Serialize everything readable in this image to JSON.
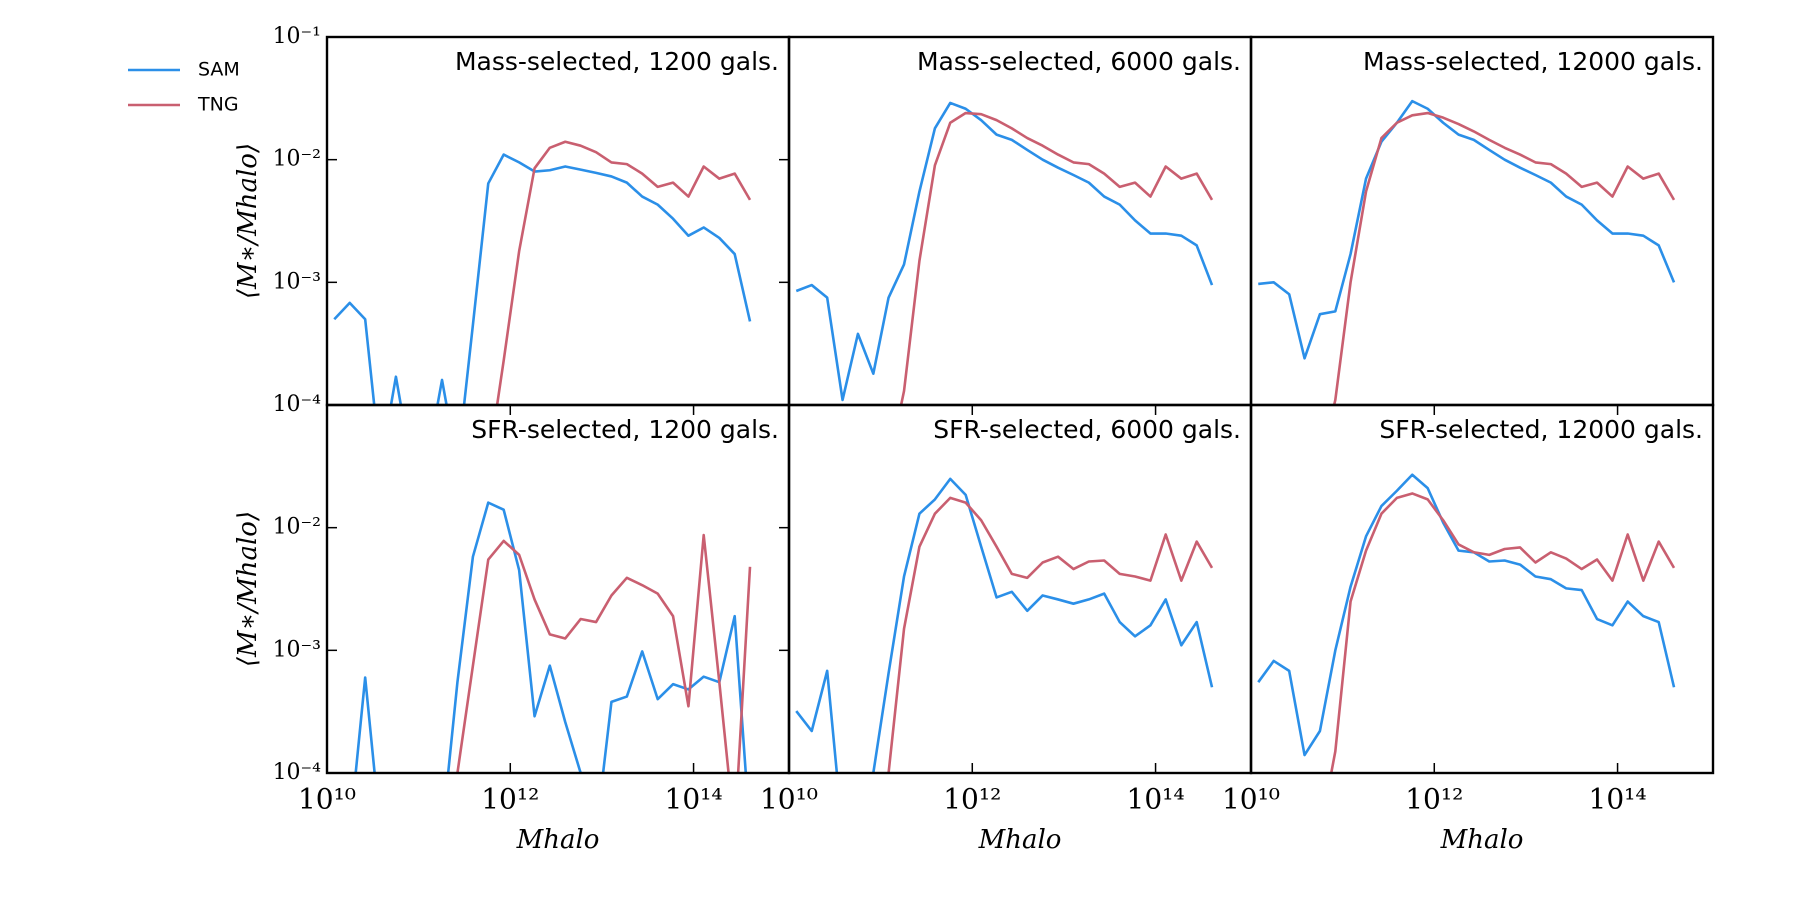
{
  "chart_data": [
    {
      "type": "line",
      "title": "Mass-selected, 1200 gals.",
      "xscale": "log",
      "yscale": "log",
      "x": [
        12000000000.0,
        17700000000.0,
        26100000000.0,
        38400000000.0,
        56500000000.0,
        83200000000.0,
        122000000000.0,
        180000000000.0,
        265000000000.0,
        391000000000.0,
        575000000000.0,
        847000000000.0,
        1250000000000.0,
        1840000000000.0,
        2700000000000.0,
        3980000000000.0,
        5860000000000.0,
        8630000000000.0,
        12700000000000.0,
        18700000000000.0,
        27500000000000.0,
        40600000000000.0,
        59700000000000.0,
        87900000000000.0,
        129000000000000.0,
        191000000000000.0,
        281000000000000.0,
        413000000000000.0
      ],
      "xlim": [
        10000000000.0,
        1100000000000000.0
      ],
      "ylim": [
        0.0001,
        0.1
      ],
      "yticks": [
        {
          "value": 0.1,
          "label": "10⁻¹"
        },
        {
          "value": 0.01,
          "label": "10⁻²"
        },
        {
          "value": 0.001,
          "label": "10⁻³"
        },
        {
          "value": 0.0001,
          "label": "10⁻⁴"
        }
      ],
      "ylabel": "⟨M∗/Mhalo⟩",
      "legend": "upper left outside",
      "series": [
        {
          "name": "SAM",
          "color": "#2b8fe8",
          "values": [
            0.0005,
            0.00068,
            0.0005,
            0,
            0.00017,
            0,
            0,
            0.00016,
            0,
            0.00045,
            0.0064,
            0.011,
            0.0095,
            0.008,
            0.0082,
            0.0088,
            0.0083,
            0.0078,
            0.0073,
            0.0065,
            0.005,
            0.0043,
            0.0033,
            0.0024,
            0.0028,
            0.0023,
            0.0017,
            0.00048
          ]
        },
        {
          "name": "TNG",
          "color": "#c95f70",
          "values": [
            0,
            0,
            0,
            0,
            0,
            0,
            0,
            0,
            0,
            0,
            0,
            0.00023,
            0.0018,
            0.0085,
            0.0125,
            0.014,
            0.013,
            0.0115,
            0.0095,
            0.0092,
            0.0077,
            0.006,
            0.0065,
            0.005,
            0.0088,
            0.007,
            0.0077,
            0.0047
          ]
        }
      ]
    },
    {
      "type": "line",
      "title": "Mass-selected, 6000 gals.",
      "xscale": "log",
      "yscale": "log",
      "x": [
        12000000000.0,
        17700000000.0,
        26100000000.0,
        38400000000.0,
        56500000000.0,
        83200000000.0,
        122000000000.0,
        180000000000.0,
        265000000000.0,
        391000000000.0,
        575000000000.0,
        847000000000.0,
        1250000000000.0,
        1840000000000.0,
        2700000000000.0,
        3980000000000.0,
        5860000000000.0,
        8630000000000.0,
        12700000000000.0,
        18700000000000.0,
        27500000000000.0,
        40600000000000.0,
        59700000000000.0,
        87900000000000.0,
        129000000000000.0,
        191000000000000.0,
        281000000000000.0,
        413000000000000.0
      ],
      "xlim": [
        10000000000.0,
        1100000000000000.0
      ],
      "ylim": [
        0.0001,
        0.1
      ],
      "series": [
        {
          "name": "SAM",
          "color": "#2b8fe8",
          "values": [
            0.00085,
            0.00095,
            0.00075,
            0.00011,
            0.00038,
            0.00018,
            0.00075,
            0.0014,
            0.0055,
            0.018,
            0.029,
            0.026,
            0.021,
            0.016,
            0.0145,
            0.012,
            0.01,
            0.0086,
            0.0075,
            0.0065,
            0.005,
            0.0043,
            0.0032,
            0.0025,
            0.0025,
            0.0024,
            0.002,
            0.00095
          ]
        },
        {
          "name": "TNG",
          "color": "#c95f70",
          "values": [
            0,
            0,
            0,
            0,
            0,
            0,
            0,
            0.00013,
            0.0015,
            0.009,
            0.02,
            0.024,
            0.0235,
            0.021,
            0.018,
            0.015,
            0.013,
            0.011,
            0.0095,
            0.0092,
            0.0077,
            0.006,
            0.0065,
            0.005,
            0.0088,
            0.007,
            0.0077,
            0.0047
          ]
        }
      ]
    },
    {
      "type": "line",
      "title": "Mass-selected, 12000 gals.",
      "xscale": "log",
      "yscale": "log",
      "x": [
        12000000000.0,
        17700000000.0,
        26100000000.0,
        38400000000.0,
        56500000000.0,
        83200000000.0,
        122000000000.0,
        180000000000.0,
        265000000000.0,
        391000000000.0,
        575000000000.0,
        847000000000.0,
        1250000000000.0,
        1840000000000.0,
        2700000000000.0,
        3980000000000.0,
        5860000000000.0,
        8630000000000.0,
        12700000000000.0,
        18700000000000.0,
        27500000000000.0,
        40600000000000.0,
        59700000000000.0,
        87900000000000.0,
        129000000000000.0,
        191000000000000.0,
        281000000000000.0,
        413000000000000.0
      ],
      "xlim": [
        10000000000.0,
        1100000000000000.0
      ],
      "ylim": [
        0.0001,
        0.1
      ],
      "series": [
        {
          "name": "SAM",
          "color": "#2b8fe8",
          "values": [
            0.00097,
            0.001,
            0.0008,
            0.00024,
            0.00055,
            0.00058,
            0.0017,
            0.007,
            0.014,
            0.02,
            0.03,
            0.026,
            0.02,
            0.016,
            0.0145,
            0.012,
            0.01,
            0.0086,
            0.0075,
            0.0065,
            0.005,
            0.0043,
            0.0032,
            0.0025,
            0.0025,
            0.0024,
            0.002,
            0.001
          ]
        },
        {
          "name": "TNG",
          "color": "#c95f70",
          "values": [
            0,
            0,
            0,
            0,
            0,
            0.00011,
            0.001,
            0.0055,
            0.015,
            0.02,
            0.023,
            0.024,
            0.022,
            0.0195,
            0.017,
            0.0145,
            0.0125,
            0.011,
            0.0095,
            0.0092,
            0.0077,
            0.006,
            0.0065,
            0.005,
            0.0088,
            0.007,
            0.0077,
            0.0047
          ]
        }
      ]
    },
    {
      "type": "line",
      "title": "SFR-selected, 1200 gals.",
      "xscale": "log",
      "yscale": "log",
      "x": [
        12000000000.0,
        17700000000.0,
        26100000000.0,
        38400000000.0,
        56500000000.0,
        83200000000.0,
        122000000000.0,
        180000000000.0,
        265000000000.0,
        391000000000.0,
        575000000000.0,
        847000000000.0,
        1250000000000.0,
        1840000000000.0,
        2700000000000.0,
        3980000000000.0,
        5860000000000.0,
        8630000000000.0,
        12700000000000.0,
        18700000000000.0,
        27500000000000.0,
        40600000000000.0,
        59700000000000.0,
        87900000000000.0,
        129000000000000.0,
        191000000000000.0,
        281000000000000.0,
        413000000000000.0
      ],
      "xlim": [
        10000000000.0,
        1100000000000000.0
      ],
      "ylim": [
        0.0001,
        0.1
      ],
      "xticks": [
        {
          "value": 10000000000.0,
          "label": "10¹⁰"
        },
        {
          "value": 1000000000000.0,
          "label": "10¹²"
        },
        {
          "value": 100000000000000.0,
          "label": "10¹⁴"
        }
      ],
      "yticks": [
        {
          "value": 0.01,
          "label": "10⁻²"
        },
        {
          "value": 0.001,
          "label": "10⁻³"
        },
        {
          "value": 0.0001,
          "label": "10⁻⁴"
        }
      ],
      "xlabel": "Mhalo",
      "ylabel": "⟨M∗/Mhalo⟩",
      "series": [
        {
          "name": "SAM",
          "color": "#2b8fe8",
          "values": [
            0,
            0,
            0.0006,
            0,
            0,
            0,
            0,
            0,
            0.00055,
            0.0058,
            0.016,
            0.014,
            0.0045,
            0.00029,
            0.00075,
            0.00026,
            0.0001,
            0,
            0.00038,
            0.00042,
            0.00098,
            0.0004,
            0.00053,
            0.00048,
            0.00061,
            0.00055,
            0.0019,
            0
          ]
        },
        {
          "name": "TNG",
          "color": "#c95f70",
          "values": [
            0,
            0,
            0,
            0,
            0,
            0,
            0,
            0,
            0.0001,
            0.00075,
            0.0055,
            0.0078,
            0.006,
            0.0026,
            0.00135,
            0.00125,
            0.0018,
            0.0017,
            0.0028,
            0.0039,
            0.0034,
            0.0029,
            0.0019,
            0.00035,
            0.0087,
            0.00055,
            0,
            0.0048
          ]
        }
      ]
    },
    {
      "type": "line",
      "title": "SFR-selected, 6000 gals.",
      "xscale": "log",
      "yscale": "log",
      "x": [
        12000000000.0,
        17700000000.0,
        26100000000.0,
        38400000000.0,
        56500000000.0,
        83200000000.0,
        122000000000.0,
        180000000000.0,
        265000000000.0,
        391000000000.0,
        575000000000.0,
        847000000000.0,
        1250000000000.0,
        1840000000000.0,
        2700000000000.0,
        3980000000000.0,
        5860000000000.0,
        8630000000000.0,
        12700000000000.0,
        18700000000000.0,
        27500000000000.0,
        40600000000000.0,
        59700000000000.0,
        87900000000000.0,
        129000000000000.0,
        191000000000000.0,
        281000000000000.0,
        413000000000000.0
      ],
      "xlim": [
        10000000000.0,
        1100000000000000.0
      ],
      "ylim": [
        0.0001,
        0.1
      ],
      "xticks": [
        {
          "value": 10000000000.0,
          "label": "10¹⁰"
        },
        {
          "value": 1000000000000.0,
          "label": "10¹²"
        },
        {
          "value": 100000000000000.0,
          "label": "10¹⁴"
        }
      ],
      "xlabel": "Mhalo",
      "series": [
        {
          "name": "SAM",
          "color": "#2b8fe8",
          "values": [
            0.00032,
            0.00022,
            0.00068,
            0,
            0,
            0.0001,
            0.00065,
            0.004,
            0.013,
            0.017,
            0.025,
            0.0185,
            0.007,
            0.0027,
            0.003,
            0.0021,
            0.0028,
            0.0026,
            0.0024,
            0.0026,
            0.0029,
            0.0017,
            0.0013,
            0.0016,
            0.0026,
            0.0011,
            0.0017,
            0.0005
          ]
        },
        {
          "name": "TNG",
          "color": "#c95f70",
          "values": [
            0,
            0,
            0,
            0,
            0,
            0,
            0.0001,
            0.0015,
            0.007,
            0.013,
            0.0175,
            0.016,
            0.0115,
            0.007,
            0.0042,
            0.0039,
            0.0052,
            0.0058,
            0.0046,
            0.0053,
            0.0054,
            0.0042,
            0.004,
            0.0037,
            0.0088,
            0.0037,
            0.0077,
            0.0047
          ]
        }
      ]
    },
    {
      "type": "line",
      "title": "SFR-selected, 12000 gals.",
      "xscale": "log",
      "yscale": "log",
      "x": [
        12000000000.0,
        17700000000.0,
        26100000000.0,
        38400000000.0,
        56500000000.0,
        83200000000.0,
        122000000000.0,
        180000000000.0,
        265000000000.0,
        391000000000.0,
        575000000000.0,
        847000000000.0,
        1250000000000.0,
        1840000000000.0,
        2700000000000.0,
        3980000000000.0,
        5860000000000.0,
        8630000000000.0,
        12700000000000.0,
        18700000000000.0,
        27500000000000.0,
        40600000000000.0,
        59700000000000.0,
        87900000000000.0,
        129000000000000.0,
        191000000000000.0,
        281000000000000.0,
        413000000000000.0
      ],
      "xlim": [
        10000000000.0,
        1100000000000000.0
      ],
      "ylim": [
        0.0001,
        0.1
      ],
      "xticks": [
        {
          "value": 10000000000.0,
          "label": "10¹⁰"
        },
        {
          "value": 1000000000000.0,
          "label": "10¹²"
        },
        {
          "value": 100000000000000.0,
          "label": "10¹⁴"
        }
      ],
      "xlabel": "Mhalo",
      "series": [
        {
          "name": "SAM",
          "color": "#2b8fe8",
          "values": [
            0.00055,
            0.00082,
            0.00068,
            0.00014,
            0.00022,
            0.001,
            0.0033,
            0.0085,
            0.015,
            0.02,
            0.027,
            0.021,
            0.011,
            0.0065,
            0.0063,
            0.0053,
            0.0054,
            0.005,
            0.004,
            0.0038,
            0.0032,
            0.0031,
            0.0018,
            0.0016,
            0.0025,
            0.0019,
            0.0017,
            0.0005
          ]
        },
        {
          "name": "TNG",
          "color": "#c95f70",
          "values": [
            0,
            0,
            0,
            0,
            0,
            0.00015,
            0.0025,
            0.0065,
            0.013,
            0.0175,
            0.019,
            0.017,
            0.0115,
            0.0073,
            0.0063,
            0.006,
            0.0067,
            0.0069,
            0.0052,
            0.0063,
            0.0056,
            0.0046,
            0.0055,
            0.0037,
            0.0088,
            0.0037,
            0.0077,
            0.0047
          ]
        }
      ]
    }
  ]
}
